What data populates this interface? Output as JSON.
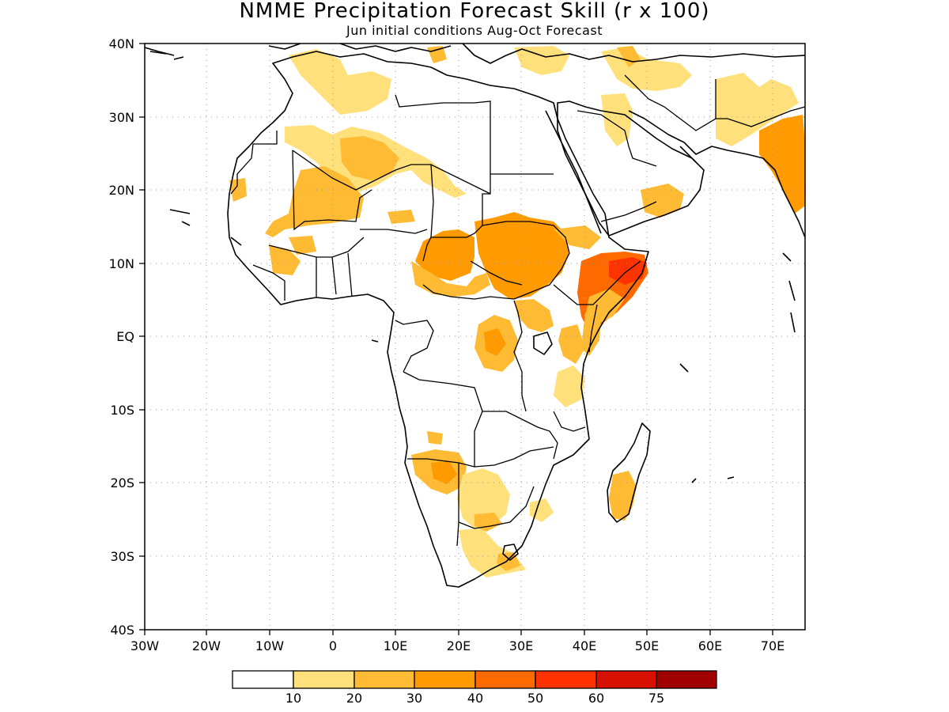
{
  "title": "NMME Precipitation Forecast Skill (r x 100)",
  "subtitle": "Jun initial conditions  Aug-Oct Forecast",
  "map": {
    "projection": "lat-lon",
    "lon_range": [
      -30,
      75
    ],
    "lat_range": [
      -40,
      40
    ],
    "grid": "dotted",
    "lat_ticks": [
      "40N",
      "30N",
      "20N",
      "10N",
      "EQ",
      "10S",
      "20S",
      "30S",
      "40S"
    ],
    "lon_ticks": [
      "30W",
      "20W",
      "10W",
      "0",
      "10E",
      "20E",
      "30E",
      "40E",
      "50E",
      "60E",
      "70E"
    ]
  },
  "colorbar": {
    "colors": [
      "#ffffff",
      "#ffe07a",
      "#ffbb33",
      "#ff9a00",
      "#ff6a00",
      "#ff3300",
      "#d81000",
      "#a00000"
    ],
    "labels": [
      "10",
      "20",
      "30",
      "40",
      "50",
      "60",
      "75"
    ]
  },
  "shading": [
    {
      "name": "north-africa-algeria",
      "level": 1
    },
    {
      "name": "sahara-central",
      "level": 2
    },
    {
      "name": "mali-niger-sahel",
      "level": 2
    },
    {
      "name": "chad-cameroon",
      "level": 3
    },
    {
      "name": "sudan-south-sudan",
      "level": 3
    },
    {
      "name": "ethiopia-somalia",
      "level": 4
    },
    {
      "name": "horn-core",
      "level": 5
    },
    {
      "name": "congo-basin",
      "level": 2
    },
    {
      "name": "east-africa-lakes",
      "level": 2
    },
    {
      "name": "tanzania",
      "level": 1
    },
    {
      "name": "angola-namibia",
      "level": 2
    },
    {
      "name": "botswana-south-africa",
      "level": 1
    },
    {
      "name": "madagascar",
      "level": 2
    },
    {
      "name": "india-west",
      "level": 3
    },
    {
      "name": "mediterranean-middle-east",
      "level": 1
    },
    {
      "name": "arabia-south",
      "level": 1
    }
  ]
}
